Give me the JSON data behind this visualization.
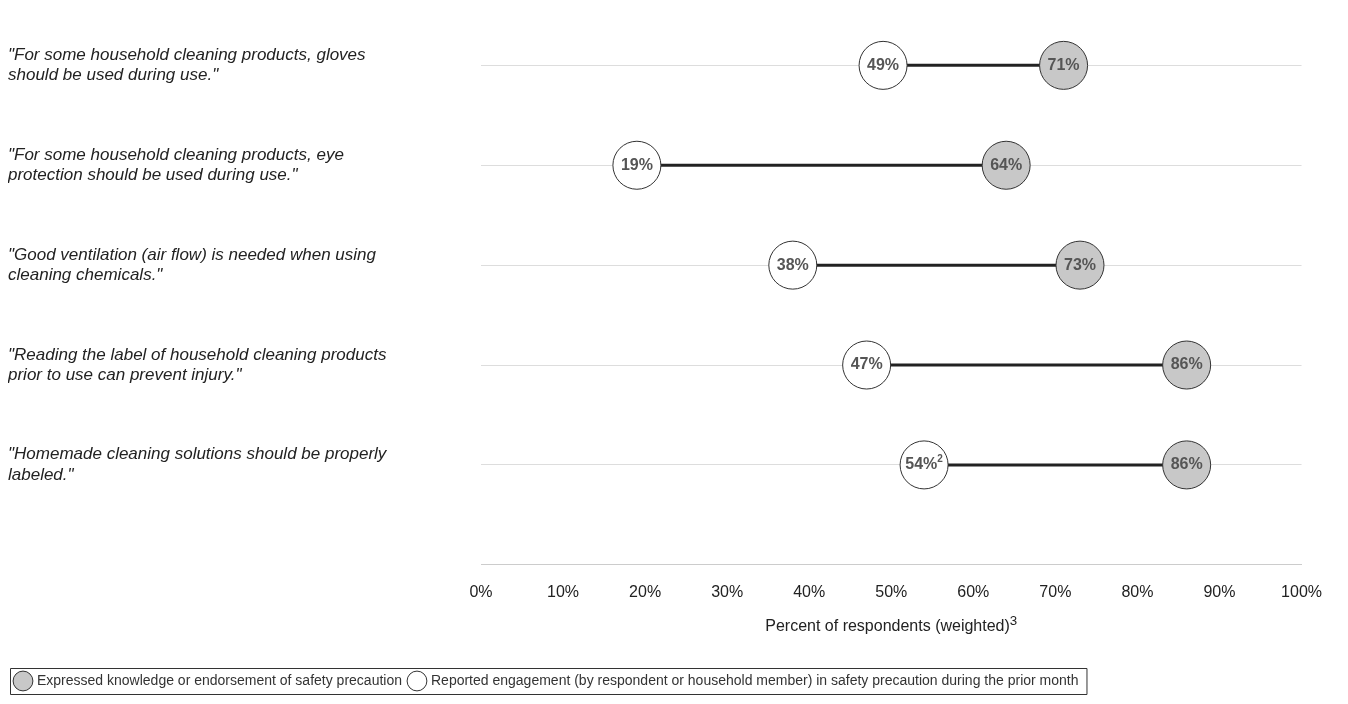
{
  "chart_data": {
    "type": "scatter",
    "orientation": "horizontal",
    "categories": [
      "\"For some household cleaning products, gloves should be used during use.\"",
      "\"For some household cleaning products, eye protection should be used during use.\"",
      "\"Good ventilation (air flow) is needed when using cleaning chemicals.\"",
      "\"Reading the label of household cleaning products prior to use can prevent injury.\"",
      "\"Homemade cleaning solutions should be properly labeled.\""
    ],
    "series": [
      {
        "name": "Expressed knowledge or endorsement of safety precaution",
        "color": "#c8c8c8",
        "values": [
          71,
          64,
          73,
          86,
          86
        ],
        "value_labels": [
          "71%",
          "64%",
          "73%",
          "86%",
          "86%"
        ]
      },
      {
        "name": "Reported engagement (by respondent or household member) in safety precaution during the prior month",
        "color": "#ffffff",
        "values": [
          49,
          19,
          38,
          47,
          54
        ],
        "value_labels": [
          "49%",
          "19%",
          "38%",
          "47%",
          "54%$^{2}$"
        ]
      }
    ],
    "xlabel": "Percent of respondents (weighted)$^{3}$",
    "xlim": [
      0,
      100
    ],
    "xticks": [
      {
        "value": 0,
        "label": "0%"
      },
      {
        "value": 10,
        "label": "10%"
      },
      {
        "value": 20,
        "label": "20%"
      },
      {
        "value": 30,
        "label": "30%"
      },
      {
        "value": 40,
        "label": "40%"
      },
      {
        "value": 50,
        "label": "50%"
      },
      {
        "value": 60,
        "label": "60%"
      },
      {
        "value": 70,
        "label": "70%"
      },
      {
        "value": 80,
        "label": "80%"
      },
      {
        "value": 90,
        "label": "90%"
      },
      {
        "value": 100,
        "label": "100%"
      }
    ],
    "grid": "y",
    "legend": "bottom left",
    "marker": "circle"
  }
}
